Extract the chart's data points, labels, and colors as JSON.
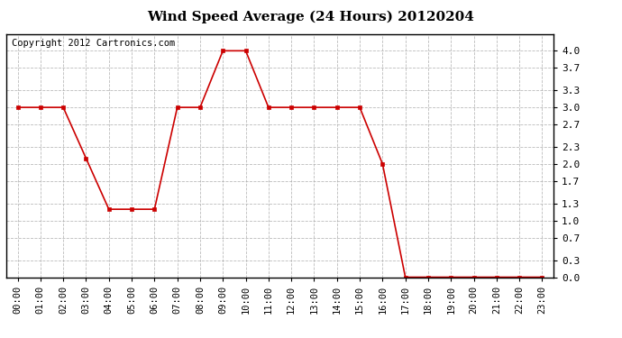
{
  "title": "Wind Speed Average (24 Hours) 20120204",
  "copyright_text": "Copyright 2012 Cartronics.com",
  "hours": [
    "00:00",
    "01:00",
    "02:00",
    "03:00",
    "04:00",
    "05:00",
    "06:00",
    "07:00",
    "08:00",
    "09:00",
    "10:00",
    "11:00",
    "12:00",
    "13:00",
    "14:00",
    "15:00",
    "16:00",
    "17:00",
    "18:00",
    "19:00",
    "20:00",
    "21:00",
    "22:00",
    "23:00"
  ],
  "values": [
    3.0,
    3.0,
    3.0,
    2.1,
    1.2,
    1.2,
    1.2,
    3.0,
    3.0,
    4.0,
    4.0,
    3.0,
    3.0,
    3.0,
    3.0,
    3.0,
    2.0,
    0.0,
    0.0,
    0.0,
    0.0,
    0.0,
    0.0,
    0.0
  ],
  "line_color": "#cc0000",
  "marker": "s",
  "marker_size": 3,
  "bg_color": "#ffffff",
  "plot_bg_color": "#ffffff",
  "grid_color": "#aaaaaa",
  "ylim_min": 0,
  "ylim_max": 4.3,
  "yticks": [
    0.0,
    0.3,
    0.7,
    1.0,
    1.3,
    1.7,
    2.0,
    2.3,
    2.7,
    3.0,
    3.3,
    3.7,
    4.0
  ],
  "title_fontsize": 11,
  "copyright_fontsize": 7.5,
  "tick_fontsize": 7.5,
  "ytick_fontsize": 8
}
